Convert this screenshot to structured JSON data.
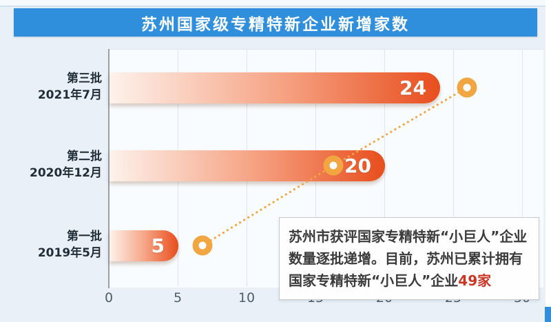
{
  "title": {
    "text": "苏州国家级专精特新企业新增家数"
  },
  "colors": {
    "banner_bg": "#2f8fdc",
    "bar_gradient_start": "#fdf2ec",
    "bar_gradient_end": "#e84e1d",
    "trend_orange": "#f2a642",
    "highlight_red": "#cb3524",
    "background": "#e9f0f7"
  },
  "annotation": {
    "text": "苏州市获评国家专精特新“小巨人”企业数量逐批递增。目前，苏州已累计拥有国家专精特新“小巨人”企业",
    "highlight": "49家"
  },
  "chart_data": {
    "type": "bar",
    "orientation": "horizontal",
    "title": "苏州国家级专精特新企业新增家数",
    "categories": [
      "第三批 2021年7月",
      "第二批 2020年12月",
      "第一批 2019年5月"
    ],
    "values": [
      24,
      20,
      5
    ],
    "rows": [
      {
        "batch": "第三批",
        "date": "2021年7月",
        "value": 24
      },
      {
        "batch": "第二批",
        "date": "2020年12月",
        "value": 20
      },
      {
        "batch": "第一批",
        "date": "2019年5月",
        "value": 5
      }
    ],
    "xlabel": "",
    "ylabel": "",
    "xlim": [
      0,
      30
    ],
    "xticks": [
      0,
      5,
      10,
      15,
      20,
      25,
      30
    ],
    "grid": "vertical",
    "trend_line": {
      "style": "dotted",
      "marker": "donut-circle"
    },
    "trend_points": [
      {
        "x": 6.8,
        "row": 2
      },
      {
        "x": 16.3,
        "row": 1
      },
      {
        "x": 26.0,
        "row": 0
      }
    ]
  }
}
